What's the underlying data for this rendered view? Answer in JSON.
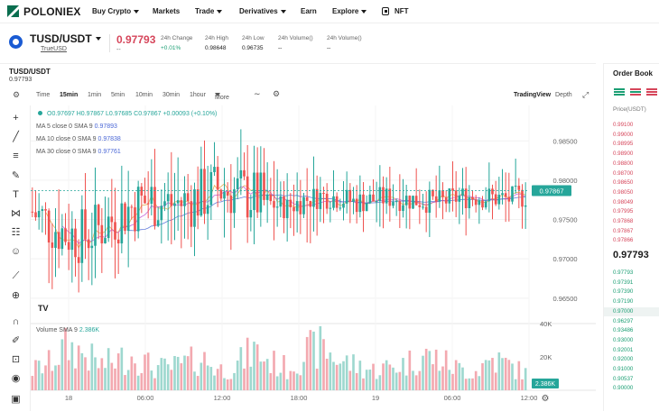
{
  "nav": {
    "logo": "POLONIEX",
    "items": [
      {
        "label": "Buy Crypto",
        "caret": true
      },
      {
        "label": "Markets",
        "caret": false
      },
      {
        "label": "Trade",
        "caret": true
      },
      {
        "label": "Derivatives",
        "caret": true
      },
      {
        "label": "Earn",
        "caret": false
      },
      {
        "label": "Explore",
        "caret": true
      },
      {
        "label": "NFT",
        "caret": false,
        "icon": "nft-icon"
      }
    ]
  },
  "pair": {
    "name": "TUSD/USDT",
    "sub": "TrueUSD",
    "last_price": "0.97793",
    "last_price_sub": "--",
    "stats": [
      {
        "label": "24h Change",
        "value": "+0.01%",
        "tone": "green"
      },
      {
        "label": "24h High",
        "value": "0.98648",
        "tone": "normal"
      },
      {
        "label": "24h Low",
        "value": "0.96735",
        "tone": "normal"
      },
      {
        "label": "24h Volume()",
        "value": "--",
        "tone": "normal"
      },
      {
        "label": "24h Volume()",
        "value": "--",
        "tone": "normal"
      }
    ]
  },
  "chart_header": {
    "symbol": "TUSD/USDT",
    "price": "0.97793"
  },
  "timeframes": [
    "Time",
    "15min",
    "1min",
    "5min",
    "10min",
    "30min",
    "1hour",
    "More"
  ],
  "active_timeframe": "15min",
  "view_options": [
    "TradingView",
    "Depth"
  ],
  "legend": {
    "ohlc": "O0.97697 H0.97867 L0.97685 C0.97867 +0.00093 (+0.10%)",
    "ma": [
      {
        "label": "MA 5 close 0 SMA 9",
        "value": "0.97893",
        "color": "#4a67d6"
      },
      {
        "label": "MA 10 close 0 SMA 9",
        "value": "0.97838",
        "color": "#4a67d6"
      },
      {
        "label": "MA 30 close 0 SMA 9",
        "value": "0.97761",
        "color": "#4a67d6"
      }
    ],
    "volume": {
      "label": "Volume SMA 9",
      "value": "2.386K"
    }
  },
  "tv_logo": "TV",
  "tools": [
    "crosshair-icon",
    "trendline-icon",
    "fib-icon",
    "brush-icon",
    "text-icon",
    "pattern-icon",
    "prediction-icon",
    "emoji-icon",
    "ruler-icon",
    "zoom-icon",
    "magnet-icon",
    "lock-draw-icon",
    "lock-icon",
    "eye-icon",
    "trash-icon"
  ],
  "colors": {
    "up": "#26a69a",
    "down": "#ef5350",
    "brand": "#0a6e4f",
    "ask": "#d6465b",
    "bid": "#1c9f74"
  },
  "chart_data": {
    "type": "candlestick",
    "price_axis": {
      "ticks": [
        "0.98500",
        "0.98000",
        "0.97500",
        "0.97000",
        "0.96500"
      ],
      "range": [
        0.962,
        0.9895
      ]
    },
    "current_price_label": "0.97867",
    "current_price": 0.97867,
    "volume_axis": {
      "ticks": [
        "40K",
        "20K"
      ],
      "max": 40000
    },
    "current_volume_label": "2.386K",
    "time_labels": [
      "18",
      "06:00",
      "12:00",
      "18:00",
      "19",
      "06:00",
      "12:00"
    ],
    "note": "",
    "candle_count": 150,
    "price_path": [
      0.976,
      0.9745,
      0.9732,
      0.9728,
      0.974,
      0.9755,
      0.9768,
      0.9775,
      0.977,
      0.9772,
      0.978,
      0.979,
      0.9785,
      0.9778,
      0.977,
      0.9765,
      0.9775,
      0.978,
      0.9778,
      0.9772,
      0.9775,
      0.9778,
      0.9776,
      0.9774,
      0.9772,
      0.9778,
      0.978,
      0.9778,
      0.9776,
      0.978
    ],
    "volume_path": [
      12000,
      16000,
      26000,
      22000,
      15000,
      18000,
      21000,
      14000,
      13000,
      16000,
      19000,
      12000,
      15000,
      24000,
      17000,
      13000,
      22000,
      26000,
      18000,
      15000,
      12000,
      14000,
      16000,
      21000,
      18000,
      13000,
      11000,
      19000,
      15000,
      10000
    ]
  },
  "orderbook": {
    "title": "Order Book",
    "header": "Price(USDT)",
    "asks": [
      "0.99100",
      "0.99000",
      "0.98995",
      "0.98900",
      "0.98800",
      "0.98700",
      "0.98650",
      "0.98050",
      "0.98049",
      "0.97995",
      "0.97868",
      "0.97867",
      "0.97866"
    ],
    "mid": "0.97793",
    "bids": [
      "0.97793",
      "0.97391",
      "0.97390",
      "0.97190",
      "0.97000",
      "0.96297",
      "0.93486",
      "0.93000",
      "0.92001",
      "0.92000",
      "0.91000",
      "0.90537",
      "0.90000"
    ]
  }
}
